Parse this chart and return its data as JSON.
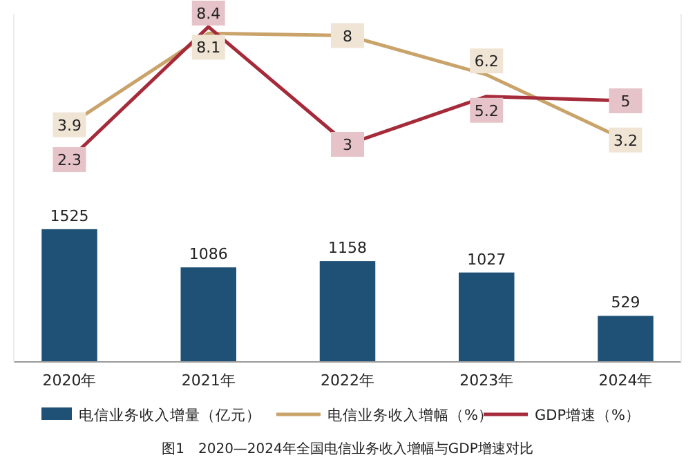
{
  "chart_data": {
    "type": "bar",
    "categories": [
      "2020年",
      "2021年",
      "2022年",
      "2023年",
      "2024年"
    ],
    "series": [
      {
        "name": "电信业务收入增量（亿元）",
        "type": "bar",
        "color": "#1f5075",
        "values": [
          1525,
          1086,
          1158,
          1027,
          529
        ]
      },
      {
        "name": "电信业务收入增幅（%）",
        "type": "line",
        "axis": "y2",
        "color": "#c9a36a",
        "values": [
          3.9,
          8.1,
          8.0,
          6.2,
          3.2
        ]
      },
      {
        "name": "GDP增速（%）",
        "type": "line",
        "axis": "y2",
        "color": "#a52a3a",
        "values": [
          2.3,
          8.4,
          3.0,
          5.2,
          5.0
        ]
      }
    ],
    "ylim": [
      0,
      4000
    ],
    "y2lim": [
      -7,
      9
    ],
    "tick_labels": "x",
    "data_labels": true,
    "legend": "bottom",
    "marker": "square",
    "annotations": [
      "图1　2020—2024年全国电信业务收入增幅与GDP增速对比"
    ]
  }
}
